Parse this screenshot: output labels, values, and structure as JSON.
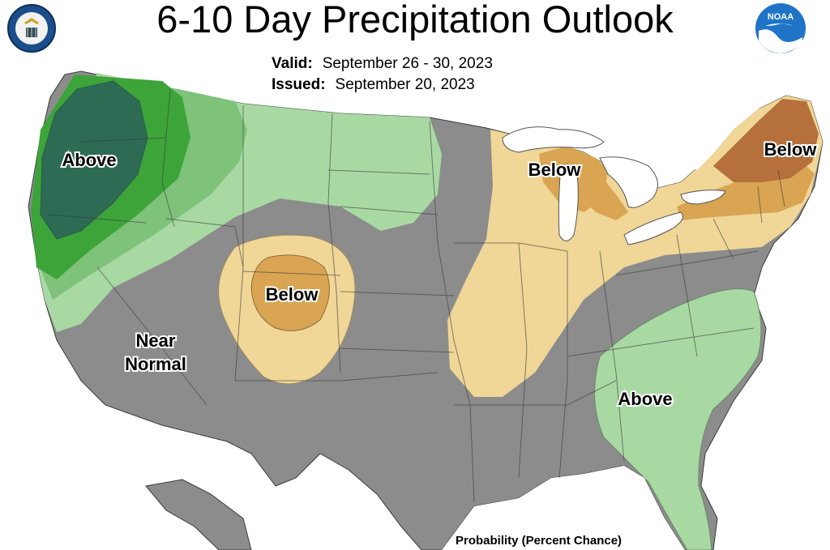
{
  "title": "6-10 Day Precipitation Outlook",
  "valid": {
    "label": "Valid:",
    "value": "September 26 - 30, 2023"
  },
  "issued": {
    "label": "Issued:",
    "value": "September 20, 2023"
  },
  "footer": "Probability (Percent Chance)",
  "logos": {
    "left": {
      "icon": "department-of-commerce-seal",
      "text": "DEPARTMENT OF COMMERCE"
    },
    "right": {
      "icon": "noaa-logo",
      "text": "NOAA"
    }
  },
  "regions": [
    {
      "label": "Above",
      "category": "above",
      "area": "Pacific Northwest"
    },
    {
      "label": "Below",
      "category": "below",
      "area": "Central Rockies"
    },
    {
      "label": "Near Normal",
      "category": "near-normal",
      "area": "Southwest"
    },
    {
      "label": "Below",
      "category": "below",
      "area": "Upper Midwest / Great Lakes"
    },
    {
      "label": "Below",
      "category": "below",
      "area": "Northeast"
    },
    {
      "label": "Above",
      "category": "above",
      "area": "Southeast"
    }
  ],
  "region_labels": {
    "above_nw": "Above",
    "below_rockies": "Below",
    "near_normal_line1": "Near",
    "near_normal_line2": "Normal",
    "below_midwest": "Below",
    "below_northeast": "Below",
    "above_se": "Above"
  },
  "colors": {
    "near_normal": "#8c8c8c",
    "above_light": "#a8d9a3",
    "above_mid": "#7fc27a",
    "above_strong": "#3da43a",
    "above_darkest": "#2d6b55",
    "below_light": "#f0d697",
    "below_mid": "#d9a553",
    "below_strong": "#b5703b",
    "lakes": "#ffffff",
    "state_lines": "#3a3a3a"
  }
}
